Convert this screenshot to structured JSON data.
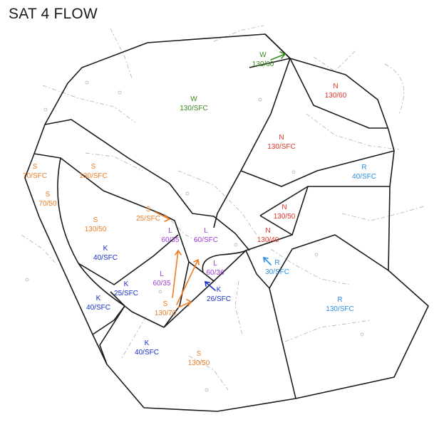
{
  "title": "SAT 4 FLOW",
  "colors": {
    "boundary": "#1a1a1a",
    "background_features": "#9a9a9a",
    "W": "#3a8a1e",
    "N": "#e3342a",
    "S": "#ee7d24",
    "L": "#a03cd6",
    "K": "#1a2ec8",
    "R": "#2c8ee0"
  },
  "sectors": [
    {
      "id": "w-north",
      "group": "W",
      "letter": "W",
      "alt": "130/60"
    },
    {
      "id": "w-main",
      "group": "W",
      "letter": "W",
      "alt": "130/SFC"
    },
    {
      "id": "n-northeast",
      "group": "N",
      "letter": "N",
      "alt": "130/60"
    },
    {
      "id": "n-main",
      "group": "N",
      "letter": "N",
      "alt": "130/SFC"
    },
    {
      "id": "n-inner",
      "group": "N",
      "letter": "N",
      "alt": "130/50"
    },
    {
      "id": "n-core",
      "group": "N",
      "letter": "N",
      "alt": "130/40"
    },
    {
      "id": "r-east",
      "group": "R",
      "letter": "R",
      "alt": "40/SFC"
    },
    {
      "id": "r-inner",
      "group": "R",
      "letter": "R",
      "alt": "30/SFC"
    },
    {
      "id": "r-southeast",
      "group": "R",
      "letter": "R",
      "alt": "130/SFC"
    },
    {
      "id": "s-west-1",
      "group": "S",
      "letter": "S",
      "alt": "70/SFC"
    },
    {
      "id": "s-west-2",
      "group": "S",
      "letter": "S",
      "alt": "130/SFC"
    },
    {
      "id": "s-west-3",
      "group": "S",
      "letter": "S",
      "alt": "70/50"
    },
    {
      "id": "s-west-4",
      "group": "S",
      "letter": "S",
      "alt": "130/50"
    },
    {
      "id": "s-inner",
      "group": "S",
      "letter": "S",
      "alt": "25/SFC"
    },
    {
      "id": "s-south-center",
      "group": "S",
      "letter": "S",
      "alt": "130/70"
    },
    {
      "id": "s-south",
      "group": "S",
      "letter": "S",
      "alt": "130/50"
    },
    {
      "id": "l-1",
      "group": "L",
      "letter": "L",
      "alt": "60/35"
    },
    {
      "id": "l-2",
      "group": "L",
      "letter": "L",
      "alt": "60/SFC"
    },
    {
      "id": "l-3",
      "group": "L",
      "letter": "L",
      "alt": "60/35"
    },
    {
      "id": "l-4",
      "group": "L",
      "letter": "L",
      "alt": "60/36"
    },
    {
      "id": "k-1",
      "group": "K",
      "letter": "K",
      "alt": "40/SFC"
    },
    {
      "id": "k-2",
      "group": "K",
      "letter": "K",
      "alt": "25/SFC"
    },
    {
      "id": "k-3",
      "group": "K",
      "letter": "K",
      "alt": "40/SFC"
    },
    {
      "id": "k-4",
      "group": "K",
      "letter": "K",
      "alt": "26/SFC"
    },
    {
      "id": "k-5",
      "group": "K",
      "letter": "K",
      "alt": "40/SFC"
    }
  ]
}
